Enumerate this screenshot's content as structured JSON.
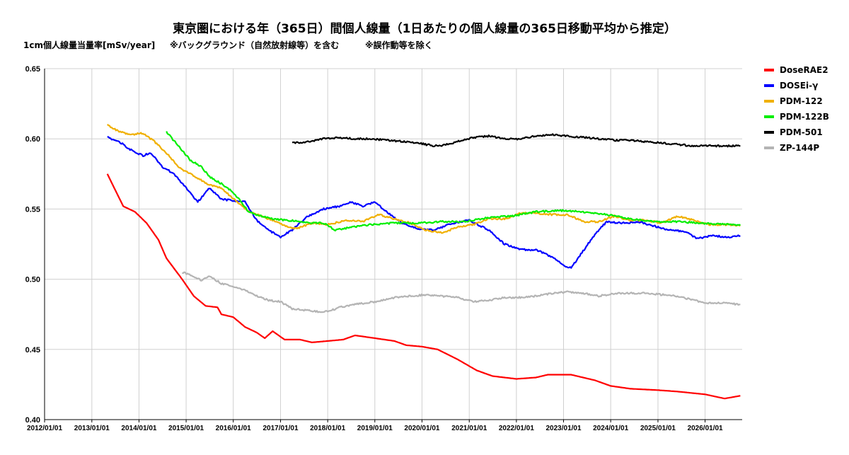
{
  "title": "東京圏における年（365日）間個人線量（1日あたりの個人線量の365日移動平均から推定）",
  "ylabel": "1cm個人線量当量率[mSv/year]",
  "note1": "※バックグラウンド（自然放射線等）を含む",
  "note2": "※誤作動等を除く",
  "chart_data": {
    "type": "line",
    "x_type": "date",
    "xlim": [
      "2012/01/01",
      "2026/10/15"
    ],
    "x_ticks": [
      "2012/01/01",
      "2013/01/01",
      "2014/01/01",
      "2015/01/01",
      "2016/01/01",
      "2017/01/01",
      "2018/01/01",
      "2019/01/01",
      "2020/01/01",
      "2021/01/01",
      "2022/01/01",
      "2023/01/01",
      "2024/01/01",
      "2025/01/01",
      "2026/01/01"
    ],
    "ylim": [
      0.4,
      0.65
    ],
    "y_ticks": [
      "0.40",
      "0.45",
      "0.50",
      "0.55",
      "0.60",
      "0.65"
    ],
    "grid": true,
    "legend": "right",
    "series": [
      {
        "name": "DoseRAE2",
        "color": "#ff0000",
        "points": [
          [
            "2013/05/01",
            0.575
          ],
          [
            "2013/09/01",
            0.552
          ],
          [
            "2013/12/01",
            0.548
          ],
          [
            "2014/03/01",
            0.54
          ],
          [
            "2014/06/01",
            0.528
          ],
          [
            "2014/08/01",
            0.515
          ],
          [
            "2014/12/01",
            0.5
          ],
          [
            "2015/03/01",
            0.488
          ],
          [
            "2015/06/01",
            0.481
          ],
          [
            "2015/09/01",
            0.48
          ],
          [
            "2015/10/01",
            0.475
          ],
          [
            "2016/01/01",
            0.473
          ],
          [
            "2016/04/01",
            0.466
          ],
          [
            "2016/07/01",
            0.462
          ],
          [
            "2016/09/01",
            0.458
          ],
          [
            "2016/11/01",
            0.463
          ],
          [
            "2017/02/01",
            0.457
          ],
          [
            "2017/06/01",
            0.457
          ],
          [
            "2017/09/01",
            0.455
          ],
          [
            "2018/01/01",
            0.456
          ],
          [
            "2018/05/01",
            0.457
          ],
          [
            "2018/08/01",
            0.46
          ],
          [
            "2019/01/01",
            0.458
          ],
          [
            "2019/06/01",
            0.456
          ],
          [
            "2019/09/01",
            0.453
          ],
          [
            "2020/01/01",
            0.452
          ],
          [
            "2020/05/01",
            0.45
          ],
          [
            "2020/10/01",
            0.443
          ],
          [
            "2021/03/01",
            0.435
          ],
          [
            "2021/07/01",
            0.431
          ],
          [
            "2022/01/01",
            0.429
          ],
          [
            "2022/06/01",
            0.43
          ],
          [
            "2022/09/01",
            0.432
          ],
          [
            "2023/03/01",
            0.432
          ],
          [
            "2023/09/01",
            0.428
          ],
          [
            "2024/01/01",
            0.424
          ],
          [
            "2024/06/01",
            0.422
          ],
          [
            "2025/01/01",
            0.421
          ],
          [
            "2025/06/01",
            0.42
          ],
          [
            "2026/01/01",
            0.418
          ],
          [
            "2026/06/01",
            0.415
          ],
          [
            "2026/10/01",
            0.417
          ]
        ]
      },
      {
        "name": "DOSEi-γ",
        "color": "#0000ff",
        "points": [
          [
            "2013/05/01",
            0.601
          ],
          [
            "2013/08/01",
            0.598
          ],
          [
            "2013/11/01",
            0.592
          ],
          [
            "2014/02/01",
            0.588
          ],
          [
            "2014/04/01",
            0.59
          ],
          [
            "2014/07/01",
            0.58
          ],
          [
            "2014/10/01",
            0.575
          ],
          [
            "2015/01/01",
            0.565
          ],
          [
            "2015/04/01",
            0.555
          ],
          [
            "2015/07/01",
            0.565
          ],
          [
            "2015/10/01",
            0.557
          ],
          [
            "2016/04/01",
            0.555
          ],
          [
            "2016/07/01",
            0.542
          ],
          [
            "2016/10/01",
            0.535
          ],
          [
            "2017/01/01",
            0.53
          ],
          [
            "2017/04/01",
            0.535
          ],
          [
            "2017/08/01",
            0.545
          ],
          [
            "2017/12/01",
            0.55
          ],
          [
            "2018/04/01",
            0.552
          ],
          [
            "2018/07/01",
            0.555
          ],
          [
            "2018/10/01",
            0.552
          ],
          [
            "2019/01/01",
            0.555
          ],
          [
            "2019/04/01",
            0.548
          ],
          [
            "2019/08/01",
            0.54
          ],
          [
            "2019/12/01",
            0.536
          ],
          [
            "2020/04/01",
            0.535
          ],
          [
            "2020/09/01",
            0.54
          ],
          [
            "2021/01/01",
            0.542
          ],
          [
            "2021/06/01",
            0.535
          ],
          [
            "2021/10/01",
            0.525
          ],
          [
            "2022/02/01",
            0.521
          ],
          [
            "2022/06/01",
            0.521
          ],
          [
            "2022/10/01",
            0.516
          ],
          [
            "2023/01/01",
            0.51
          ],
          [
            "2023/03/01",
            0.508
          ],
          [
            "2023/06/01",
            0.52
          ],
          [
            "2023/09/01",
            0.532
          ],
          [
            "2023/12/01",
            0.541
          ],
          [
            "2024/04/01",
            0.54
          ],
          [
            "2024/08/01",
            0.541
          ],
          [
            "2024/12/01",
            0.538
          ],
          [
            "2025/04/01",
            0.535
          ],
          [
            "2025/08/01",
            0.534
          ],
          [
            "2025/11/01",
            0.529
          ],
          [
            "2026/03/01",
            0.531
          ],
          [
            "2026/07/01",
            0.53
          ],
          [
            "2026/10/01",
            0.531
          ]
        ]
      },
      {
        "name": "PDM-122",
        "color": "#f0b000",
        "points": [
          [
            "2013/05/01",
            0.61
          ],
          [
            "2013/08/01",
            0.605
          ],
          [
            "2013/11/01",
            0.603
          ],
          [
            "2014/02/01",
            0.604
          ],
          [
            "2014/05/01",
            0.598
          ],
          [
            "2014/08/01",
            0.59
          ],
          [
            "2014/11/01",
            0.58
          ],
          [
            "2015/02/01",
            0.575
          ],
          [
            "2015/04/01",
            0.572
          ],
          [
            "2015/07/01",
            0.567
          ],
          [
            "2015/10/01",
            0.565
          ],
          [
            "2016/02/01",
            0.555
          ],
          [
            "2016/05/01",
            0.548
          ],
          [
            "2016/08/01",
            0.545
          ],
          [
            "2016/11/01",
            0.542
          ],
          [
            "2017/02/01",
            0.538
          ],
          [
            "2017/05/01",
            0.536
          ],
          [
            "2017/09/01",
            0.54
          ],
          [
            "2018/01/01",
            0.539
          ],
          [
            "2018/06/01",
            0.542
          ],
          [
            "2018/10/01",
            0.541
          ],
          [
            "2019/02/01",
            0.546
          ],
          [
            "2019/06/01",
            0.543
          ],
          [
            "2019/10/01",
            0.54
          ],
          [
            "2020/02/01",
            0.535
          ],
          [
            "2020/06/01",
            0.533
          ],
          [
            "2020/10/01",
            0.537
          ],
          [
            "2021/02/01",
            0.539
          ],
          [
            "2021/06/01",
            0.543
          ],
          [
            "2021/10/01",
            0.543
          ],
          [
            "2022/02/01",
            0.547
          ],
          [
            "2022/06/01",
            0.547
          ],
          [
            "2022/10/01",
            0.546
          ],
          [
            "2023/02/01",
            0.546
          ],
          [
            "2023/06/01",
            0.541
          ],
          [
            "2023/10/01",
            0.541
          ],
          [
            "2024/02/01",
            0.545
          ],
          [
            "2024/06/01",
            0.542
          ],
          [
            "2024/10/01",
            0.542
          ],
          [
            "2025/02/01",
            0.54
          ],
          [
            "2025/06/01",
            0.545
          ],
          [
            "2025/10/01",
            0.542
          ],
          [
            "2026/02/01",
            0.539
          ],
          [
            "2026/06/01",
            0.539
          ],
          [
            "2026/10/01",
            0.538
          ]
        ]
      },
      {
        "name": "PDM-122B",
        "color": "#00ee00",
        "points": [
          [
            "2014/08/01",
            0.605
          ],
          [
            "2014/11/01",
            0.595
          ],
          [
            "2015/02/01",
            0.585
          ],
          [
            "2015/05/01",
            0.58
          ],
          [
            "2015/07/01",
            0.573
          ],
          [
            "2015/10/01",
            0.568
          ],
          [
            "2016/01/01",
            0.562
          ],
          [
            "2016/05/01",
            0.548
          ],
          [
            "2016/08/01",
            0.545
          ],
          [
            "2016/11/01",
            0.543
          ],
          [
            "2017/03/01",
            0.542
          ],
          [
            "2017/06/01",
            0.541
          ],
          [
            "2017/09/01",
            0.54
          ],
          [
            "2017/12/01",
            0.54
          ],
          [
            "2018/03/01",
            0.535
          ],
          [
            "2018/07/01",
            0.537
          ],
          [
            "2018/12/01",
            0.539
          ],
          [
            "2019/06/01",
            0.54
          ],
          [
            "2019/12/01",
            0.54
          ],
          [
            "2020/06/01",
            0.541
          ],
          [
            "2020/12/01",
            0.541
          ],
          [
            "2021/06/01",
            0.544
          ],
          [
            "2021/12/01",
            0.545
          ],
          [
            "2022/06/01",
            0.548
          ],
          [
            "2022/12/01",
            0.549
          ],
          [
            "2023/06/01",
            0.548
          ],
          [
            "2023/12/01",
            0.546
          ],
          [
            "2024/06/01",
            0.543
          ],
          [
            "2024/12/01",
            0.541
          ],
          [
            "2025/06/01",
            0.541
          ],
          [
            "2025/12/01",
            0.54
          ],
          [
            "2026/06/01",
            0.539
          ],
          [
            "2026/10/01",
            0.539
          ]
        ]
      },
      {
        "name": "PDM-501",
        "color": "#000000",
        "points": [
          [
            "2017/04/01",
            0.597
          ],
          [
            "2017/08/01",
            0.598
          ],
          [
            "2017/12/01",
            0.6
          ],
          [
            "2018/04/01",
            0.601
          ],
          [
            "2018/08/01",
            0.6
          ],
          [
            "2018/12/01",
            0.6
          ],
          [
            "2019/04/01",
            0.599
          ],
          [
            "2019/09/01",
            0.598
          ],
          [
            "2019/12/01",
            0.597
          ],
          [
            "2020/04/01",
            0.595
          ],
          [
            "2020/06/01",
            0.595
          ],
          [
            "2020/10/01",
            0.598
          ],
          [
            "2021/02/01",
            0.601
          ],
          [
            "2021/06/01",
            0.602
          ],
          [
            "2021/10/01",
            0.6
          ],
          [
            "2022/02/01",
            0.6
          ],
          [
            "2022/06/01",
            0.602
          ],
          [
            "2022/10/01",
            0.603
          ],
          [
            "2023/02/01",
            0.602
          ],
          [
            "2023/06/01",
            0.601
          ],
          [
            "2023/10/01",
            0.6
          ],
          [
            "2024/02/01",
            0.599
          ],
          [
            "2024/06/01",
            0.599
          ],
          [
            "2024/10/01",
            0.598
          ],
          [
            "2025/02/01",
            0.597
          ],
          [
            "2025/06/01",
            0.596
          ],
          [
            "2025/10/01",
            0.595
          ],
          [
            "2026/02/01",
            0.595
          ],
          [
            "2026/06/01",
            0.595
          ],
          [
            "2026/10/01",
            0.595
          ]
        ]
      },
      {
        "name": "ZP-144P",
        "color": "#b4b4b4",
        "points": [
          [
            "2014/12/01",
            0.505
          ],
          [
            "2015/03/01",
            0.502
          ],
          [
            "2015/05/01",
            0.499
          ],
          [
            "2015/07/01",
            0.502
          ],
          [
            "2015/10/01",
            0.497
          ],
          [
            "2016/01/01",
            0.495
          ],
          [
            "2016/04/01",
            0.492
          ],
          [
            "2016/07/01",
            0.488
          ],
          [
            "2016/10/01",
            0.485
          ],
          [
            "2017/01/01",
            0.484
          ],
          [
            "2017/04/01",
            0.479
          ],
          [
            "2017/07/01",
            0.478
          ],
          [
            "2017/10/01",
            0.477
          ],
          [
            "2018/01/01",
            0.477
          ],
          [
            "2018/04/01",
            0.48
          ],
          [
            "2018/08/01",
            0.482
          ],
          [
            "2019/01/01",
            0.484
          ],
          [
            "2019/06/01",
            0.487
          ],
          [
            "2019/10/01",
            0.488
          ],
          [
            "2020/02/01",
            0.489
          ],
          [
            "2020/06/01",
            0.488
          ],
          [
            "2020/10/01",
            0.487
          ],
          [
            "2021/02/01",
            0.484
          ],
          [
            "2021/06/01",
            0.485
          ],
          [
            "2021/10/01",
            0.487
          ],
          [
            "2022/02/01",
            0.487
          ],
          [
            "2022/06/01",
            0.488
          ],
          [
            "2022/10/01",
            0.49
          ],
          [
            "2023/02/01",
            0.491
          ],
          [
            "2023/06/01",
            0.49
          ],
          [
            "2023/10/01",
            0.488
          ],
          [
            "2024/02/01",
            0.49
          ],
          [
            "2024/06/01",
            0.49
          ],
          [
            "2024/10/01",
            0.49
          ],
          [
            "2025/02/01",
            0.489
          ],
          [
            "2025/06/01",
            0.488
          ],
          [
            "2025/10/01",
            0.485
          ],
          [
            "2026/02/01",
            0.483
          ],
          [
            "2026/06/01",
            0.483
          ],
          [
            "2026/10/01",
            0.482
          ]
        ]
      }
    ]
  }
}
